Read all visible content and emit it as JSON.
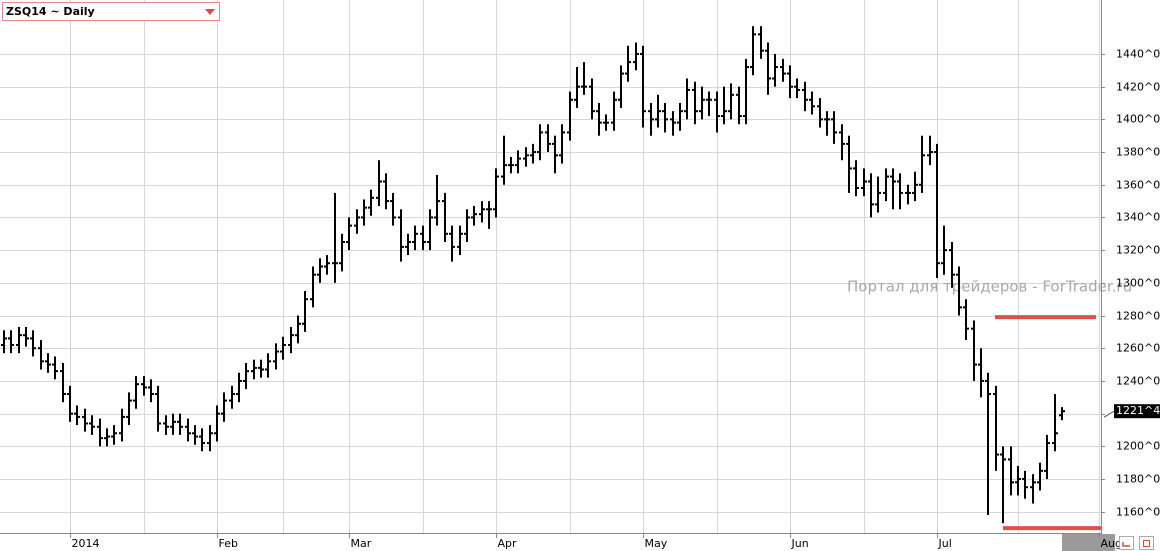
{
  "chart_data": {
    "type": "ohlc",
    "title": "ZSQ14 ~ Daily",
    "watermark": "Портал для трейдеров - ForTrader.ru",
    "color": "#000000",
    "grid": true,
    "categories": [
      null,
      null,
      null,
      null,
      null,
      null,
      null,
      null,
      null,
      "2014",
      null,
      null,
      null,
      null,
      null,
      null,
      null,
      null,
      null,
      null,
      null,
      null,
      null,
      null,
      null,
      null,
      null,
      null,
      null,
      "Feb",
      null,
      null,
      null,
      null,
      null,
      null,
      null,
      null,
      null,
      null,
      null,
      null,
      null,
      null,
      null,
      null,
      null,
      "Mar",
      null,
      null,
      null,
      null,
      null,
      null,
      null,
      null,
      null,
      null,
      null,
      null,
      null,
      null,
      null,
      null,
      null,
      null,
      null,
      "Apr",
      null,
      null,
      null,
      null,
      null,
      null,
      null,
      null,
      null,
      null,
      null,
      null,
      null,
      null,
      null,
      null,
      null,
      null,
      null,
      "May",
      null,
      null,
      null,
      null,
      null,
      null,
      null,
      null,
      null,
      null,
      null,
      null,
      null,
      null,
      null,
      null,
      null,
      null,
      null,
      "Jun",
      null,
      null,
      null,
      null,
      null,
      null,
      null,
      null,
      null,
      null,
      null,
      null,
      null,
      null,
      null,
      null,
      null,
      null,
      null,
      "Jul",
      null,
      null,
      null,
      null,
      null,
      null,
      null,
      null,
      null,
      null,
      null,
      null,
      null,
      null,
      null,
      null,
      null,
      null,
      null,
      null,
      null,
      "Aug"
    ],
    "open": [
      1262,
      1266,
      1262,
      1268,
      1266,
      1260,
      1252,
      1250,
      1246,
      1232,
      1220,
      1218,
      1214,
      1212,
      1205,
      1206,
      1208,
      1218,
      1228,
      1238,
      1236,
      1232,
      1214,
      1212,
      1215,
      1212,
      1208,
      1206,
      1202,
      1208,
      1220,
      1228,
      1232,
      1240,
      1246,
      1248,
      1247,
      1252,
      1258,
      1262,
      1268,
      1275,
      1290,
      1305,
      1310,
      1312,
      1312,
      1325,
      1335,
      1340,
      1346,
      1352,
      1362,
      1350,
      1340,
      1322,
      1325,
      1330,
      1325,
      1340,
      1350,
      1330,
      1322,
      1330,
      1340,
      1342,
      1345,
      1345,
      1365,
      1372,
      1372,
      1376,
      1378,
      1380,
      1392,
      1385,
      1378,
      1392,
      1412,
      1420,
      1420,
      1405,
      1398,
      1398,
      1412,
      1428,
      1435,
      1440,
      1405,
      1400,
      1405,
      1400,
      1398,
      1405,
      1418,
      1405,
      1412,
      1412,
      1402,
      1405,
      1415,
      1402,
      1432,
      1452,
      1442,
      1425,
      1432,
      1428,
      1420,
      1418,
      1412,
      1408,
      1400,
      1400,
      1392,
      1385,
      1370,
      1358,
      1362,
      1348,
      1355,
      1365,
      1362,
      1355,
      1355,
      1360,
      1378,
      1380,
      1312,
      1320,
      1305,
      1285,
      1272,
      1250,
      1240,
      1232,
      1195,
      1192,
      1178,
      1180,
      1175,
      1178,
      1185,
      1202,
      1219,
      null,
      null,
      null,
      null,
      null
    ],
    "high": [
      1271,
      1271,
      1273,
      1273,
      1271,
      1265,
      1257,
      1255,
      1251,
      1237,
      1225,
      1223,
      1219,
      1217,
      1211,
      1213,
      1223,
      1233,
      1243,
      1243,
      1241,
      1237,
      1219,
      1220,
      1220,
      1217,
      1213,
      1211,
      1213,
      1225,
      1233,
      1237,
      1245,
      1251,
      1253,
      1253,
      1257,
      1263,
      1267,
      1273,
      1280,
      1295,
      1310,
      1315,
      1317,
      1355,
      1330,
      1340,
      1345,
      1351,
      1357,
      1375,
      1367,
      1355,
      1345,
      1330,
      1335,
      1335,
      1345,
      1366,
      1355,
      1335,
      1335,
      1345,
      1347,
      1350,
      1350,
      1370,
      1390,
      1377,
      1381,
      1383,
      1385,
      1397,
      1397,
      1390,
      1397,
      1417,
      1432,
      1435,
      1425,
      1410,
      1403,
      1417,
      1433,
      1445,
      1447,
      1445,
      1410,
      1415,
      1410,
      1405,
      1410,
      1425,
      1423,
      1420,
      1417,
      1417,
      1420,
      1422,
      1420,
      1437,
      1457,
      1457,
      1447,
      1440,
      1437,
      1433,
      1425,
      1423,
      1417,
      1413,
      1405,
      1405,
      1397,
      1390,
      1375,
      1370,
      1367,
      1365,
      1370,
      1370,
      1367,
      1360,
      1368,
      1390,
      1390,
      1385,
      1335,
      1325,
      1310,
      1290,
      1277,
      1260,
      1245,
      1237,
      1200,
      1200,
      1188,
      1185,
      1183,
      1190,
      1207,
      1232,
      1224,
      null,
      null,
      null,
      null,
      null
    ],
    "low": [
      1257,
      1257,
      1257,
      1261,
      1255,
      1247,
      1245,
      1241,
      1227,
      1215,
      1213,
      1209,
      1207,
      1200,
      1200,
      1201,
      1203,
      1213,
      1223,
      1231,
      1227,
      1209,
      1207,
      1207,
      1207,
      1203,
      1201,
      1197,
      1197,
      1203,
      1215,
      1223,
      1227,
      1235,
      1241,
      1242,
      1242,
      1247,
      1253,
      1257,
      1263,
      1270,
      1285,
      1300,
      1305,
      1300,
      1307,
      1320,
      1330,
      1335,
      1341,
      1347,
      1345,
      1335,
      1313,
      1317,
      1320,
      1320,
      1320,
      1335,
      1325,
      1313,
      1317,
      1325,
      1335,
      1337,
      1333,
      1340,
      1360,
      1367,
      1367,
      1371,
      1373,
      1375,
      1380,
      1367,
      1373,
      1387,
      1407,
      1415,
      1400,
      1390,
      1393,
      1393,
      1407,
      1423,
      1430,
      1395,
      1390,
      1395,
      1392,
      1390,
      1393,
      1400,
      1397,
      1400,
      1402,
      1392,
      1397,
      1400,
      1397,
      1397,
      1427,
      1437,
      1415,
      1420,
      1423,
      1413,
      1413,
      1405,
      1403,
      1395,
      1390,
      1385,
      1375,
      1355,
      1353,
      1353,
      1340,
      1343,
      1350,
      1345,
      1345,
      1348,
      1350,
      1355,
      1372,
      1303,
      1305,
      1297,
      1280,
      1265,
      1240,
      1230,
      1158,
      1185,
      1153,
      1170,
      1170,
      1168,
      1165,
      1173,
      1180,
      1197,
      1216,
      null,
      null,
      null,
      null,
      null
    ],
    "close": [
      1266,
      1262,
      1268,
      1266,
      1260,
      1252,
      1250,
      1246,
      1232,
      1220,
      1218,
      1214,
      1212,
      1205,
      1206,
      1208,
      1218,
      1228,
      1238,
      1236,
      1232,
      1214,
      1212,
      1215,
      1212,
      1208,
      1206,
      1202,
      1208,
      1220,
      1228,
      1232,
      1240,
      1246,
      1248,
      1247,
      1252,
      1258,
      1262,
      1268,
      1275,
      1290,
      1305,
      1310,
      1312,
      1312,
      1325,
      1335,
      1340,
      1346,
      1352,
      1362,
      1350,
      1340,
      1322,
      1325,
      1330,
      1325,
      1340,
      1350,
      1330,
      1322,
      1330,
      1340,
      1342,
      1345,
      1345,
      1365,
      1372,
      1372,
      1376,
      1378,
      1380,
      1392,
      1385,
      1378,
      1392,
      1412,
      1420,
      1420,
      1405,
      1398,
      1398,
      1412,
      1428,
      1435,
      1440,
      1405,
      1400,
      1405,
      1400,
      1398,
      1405,
      1418,
      1405,
      1412,
      1412,
      1402,
      1405,
      1415,
      1402,
      1432,
      1452,
      1442,
      1425,
      1432,
      1428,
      1420,
      1418,
      1412,
      1408,
      1400,
      1400,
      1392,
      1385,
      1370,
      1358,
      1362,
      1348,
      1355,
      1365,
      1362,
      1355,
      1355,
      1360,
      1378,
      1380,
      1312,
      1320,
      1305,
      1285,
      1272,
      1250,
      1240,
      1232,
      1195,
      1192,
      1178,
      1180,
      1175,
      1178,
      1185,
      1202,
      1208,
      1221.5,
      null,
      null,
      null,
      null,
      null
    ],
    "last_price": {
      "value": 1221.5,
      "label": "1221^4"
    },
    "levels": [
      {
        "value": 1279,
        "color": "#e0504a"
      },
      {
        "value": 1150,
        "color": "#e0504a"
      }
    ],
    "ylim": [
      1147,
      1473
    ],
    "yticks": [
      {
        "value": 1160,
        "label": "1160^0"
      },
      {
        "value": 1180,
        "label": "1180^0"
      },
      {
        "value": 1200,
        "label": "1200^0"
      },
      {
        "value": 1220,
        "label": "1220^0"
      },
      {
        "value": 1240,
        "label": "1240^0"
      },
      {
        "value": 1260,
        "label": "1260^0"
      },
      {
        "value": 1280,
        "label": "1280^0"
      },
      {
        "value": 1300,
        "label": "1300^0"
      },
      {
        "value": 1320,
        "label": "1320^0"
      },
      {
        "value": 1340,
        "label": "1340^0"
      },
      {
        "value": 1360,
        "label": "1360^0"
      },
      {
        "value": 1380,
        "label": "1380^0"
      },
      {
        "value": 1400,
        "label": "1400^0"
      },
      {
        "value": 1420,
        "label": "1420^0"
      },
      {
        "value": 1440,
        "label": "1440^0"
      }
    ]
  }
}
